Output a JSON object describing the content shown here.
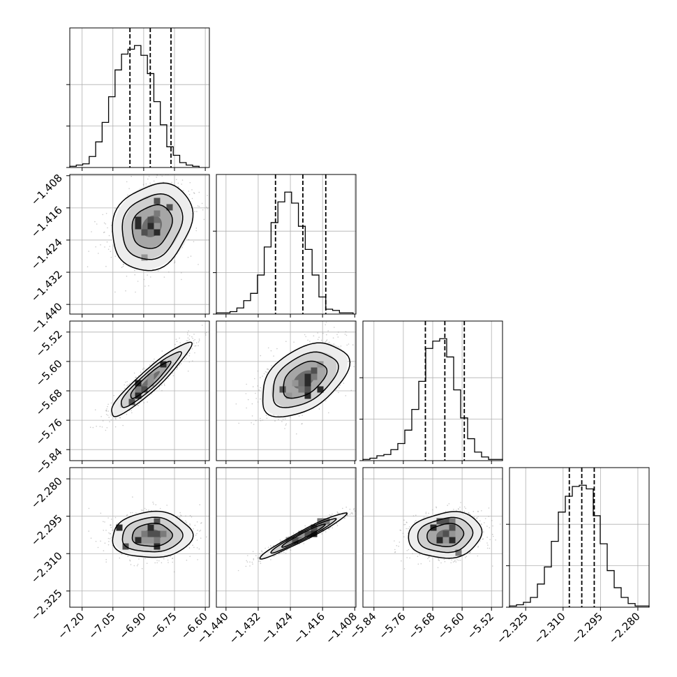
{
  "chart_data": {
    "type": "corner",
    "grid": true,
    "colors": {
      "line": "#000000",
      "grid": "#b0b0b0",
      "scatter": "#8c8c8c",
      "background": "#ffffff"
    },
    "parameters": [
      {
        "range": [
          -7.26,
          -6.58
        ],
        "ticks": [
          "−7.20",
          "−7.05",
          "−6.90",
          "−6.75",
          "−6.60"
        ],
        "tick_values": [
          -7.2,
          -7.05,
          -6.9,
          -6.75,
          -6.6
        ],
        "quantiles": [
          -6.967,
          -6.868,
          -6.767
        ],
        "histogram": {
          "edges_start": -7.26,
          "bin_width": 0.0315,
          "counts": [
            1,
            2,
            3,
            9,
            21,
            37,
            58,
            80,
            93,
            97,
            100,
            92,
            77,
            54,
            35,
            17,
            10,
            4,
            2,
            1
          ]
        }
      },
      {
        "range": [
          -1.4424,
          -1.4077
        ],
        "ticks": [
          "−1.440",
          "−1.432",
          "−1.424",
          "−1.416",
          "−1.408"
        ],
        "tick_values": [
          -1.44,
          -1.432,
          -1.424,
          -1.416,
          -1.408
        ],
        "quantiles": [
          -1.4277,
          -1.4209,
          -1.4152
        ],
        "histogram": {
          "edges_start": -1.4424,
          "bin_width": 0.0017,
          "counts": [
            1,
            1,
            2,
            5,
            11,
            17,
            32,
            55,
            75,
            92,
            100,
            91,
            72,
            53,
            32,
            14,
            4,
            3,
            1,
            1
          ]
        }
      },
      {
        "range": [
          -5.87,
          -5.49
        ],
        "ticks": [
          "−5.84",
          "−5.76",
          "−5.68",
          "−5.60",
          "−5.52"
        ],
        "tick_values": [
          -5.84,
          -5.76,
          -5.68,
          -5.6,
          -5.52
        ],
        "quantiles": [
          -5.7,
          -5.647,
          -5.594
        ],
        "histogram": {
          "edges_start": -5.87,
          "bin_width": 0.019,
          "counts": [
            1,
            2,
            4,
            5,
            9,
            14,
            25,
            42,
            65,
            92,
            98,
            100,
            85,
            58,
            35,
            18,
            7,
            3,
            1,
            1
          ]
        }
      },
      {
        "range": [
          -2.3315,
          -2.2755
        ],
        "ticks": [
          "−2.325",
          "−2.310",
          "−2.295",
          "−2.280"
        ],
        "tick_values": [
          -2.325,
          -2.31,
          -2.295,
          -2.28
        ],
        "quantiles": [
          -2.3075,
          -2.3025,
          -2.2975
        ],
        "histogram": {
          "edges_start": -2.3315,
          "bin_width": 0.0028,
          "counts": [
            1,
            2,
            4,
            8,
            19,
            33,
            54,
            78,
            91,
            99,
            100,
            97,
            75,
            52,
            30,
            16,
            8,
            3,
            1,
            1
          ]
        }
      }
    ],
    "pairs": [
      {
        "x": 0,
        "y": 1,
        "center": [
          -6.86,
          -1.4206
        ],
        "sigma": [
          0.0975,
          0.0054
        ],
        "corr": 0.2
      },
      {
        "x": 0,
        "y": 2,
        "center": [
          -6.87,
          -5.651
        ],
        "sigma": [
          0.0975,
          0.05
        ],
        "corr": 0.93
      },
      {
        "x": 1,
        "y": 2,
        "center": [
          -1.4206,
          -5.649
        ],
        "sigma": [
          0.0054,
          0.05
        ],
        "corr": 0.45
      },
      {
        "x": 0,
        "y": 3,
        "center": [
          -6.86,
          -2.3026
        ],
        "sigma": [
          0.0975,
          0.0046
        ],
        "corr": 0.05
      },
      {
        "x": 1,
        "y": 3,
        "center": [
          -1.4207,
          -2.3027
        ],
        "sigma": [
          0.0054,
          0.0046
        ],
        "corr": 0.97
      },
      {
        "x": 2,
        "y": 3,
        "center": [
          -5.645,
          -2.3026
        ],
        "sigma": [
          0.05,
          0.0046
        ],
        "corr": 0.12
      }
    ]
  }
}
